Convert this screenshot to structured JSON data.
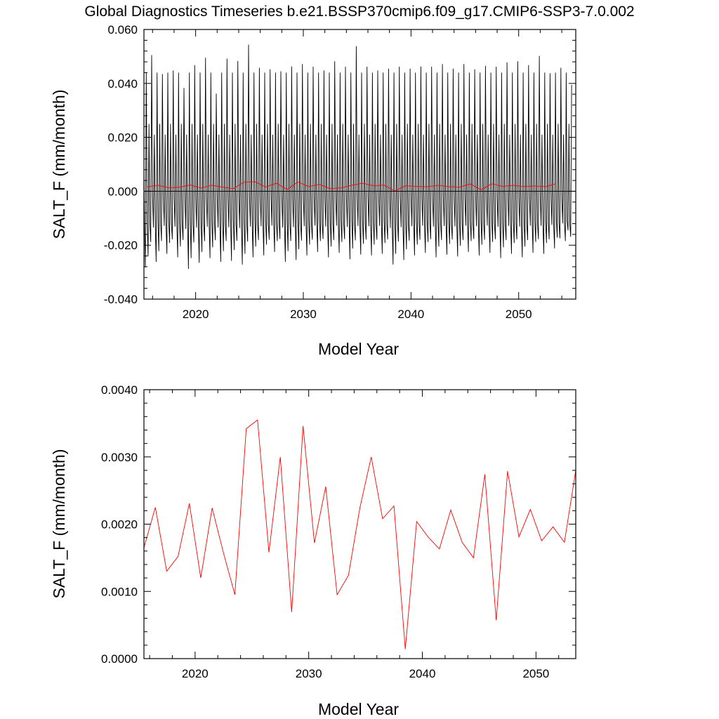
{
  "title": "Global Diagnostics Timeseries b.e21.BSSP370cmip6.f09_g17.CMIP6-SSP3-7.0.002",
  "chart_data": [
    {
      "type": "line",
      "xlabel": "Model Year",
      "ylabel": "SALT_F (mm/month)",
      "xlim": [
        2015.2,
        2055.3
      ],
      "ylim": [
        -0.04,
        0.06
      ],
      "xticks": [
        2020,
        2030,
        2040,
        2050
      ],
      "xtick_labels": [
        "2020",
        "2030",
        "2040",
        "2050"
      ],
      "yticks": [
        -0.04,
        -0.02,
        0.0,
        0.02,
        0.04,
        0.06
      ],
      "ytick_labels": [
        "-0.040",
        "-0.020",
        "0.000",
        "0.020",
        "0.040",
        "0.060"
      ],
      "zero_line": true,
      "grid": false,
      "series": [
        {
          "color": "#000000",
          "x_start": 2015.0,
          "monthly_step": 0.08333,
          "monthly_pattern": [
            -0.002,
            -0.013,
            0.021,
            -0.012,
            -0.021,
            0.044,
            -0.011,
            -0.021,
            0.025,
            -0.012,
            -0.018,
            0.05
          ],
          "peaks": [
            0.0505,
            0.0435,
            0.0448,
            0.0383,
            0.0468,
            0.0495,
            0.0362,
            0.0492,
            0.0483,
            0.0544,
            0.0458,
            0.0452,
            0.0445,
            0.0463,
            0.0472,
            0.0462,
            0.0448,
            0.0482,
            0.0462,
            0.0538,
            0.0462,
            0.0448,
            0.0455,
            0.0462,
            0.0455,
            0.0463,
            0.0462,
            0.0472,
            0.0455,
            0.0472,
            0.0452,
            0.0465,
            0.0462,
            0.0478,
            0.0482,
            0.0468,
            0.0502,
            0.0438,
            0.0458,
            0.0395
          ],
          "troughs": [
            -0.0282,
            -0.0262,
            -0.0232,
            -0.0245,
            -0.0288,
            -0.0265,
            -0.0248,
            -0.0262,
            -0.0258,
            -0.0272,
            -0.0245,
            -0.0238,
            -0.0225,
            -0.0262,
            -0.0255,
            -0.0238,
            -0.0225,
            -0.0245,
            -0.0228,
            -0.0252,
            -0.0235,
            -0.0238,
            -0.0232,
            -0.0272,
            -0.0255,
            -0.0238,
            -0.0228,
            -0.0245,
            -0.0235,
            -0.0242,
            -0.0225,
            -0.0238,
            -0.0228,
            -0.0248,
            -0.0232,
            -0.0245,
            -0.0228,
            -0.0232,
            -0.0212,
            -0.0185
          ]
        },
        {
          "color": "#ff0000",
          "x": [
            2015.5,
            2016.5,
            2017.5,
            2018.5,
            2019.5,
            2020.5,
            2021.5,
            2022.5,
            2023.5,
            2024.5,
            2025.5,
            2026.5,
            2027.5,
            2028.5,
            2029.5,
            2030.5,
            2031.5,
            2032.5,
            2033.5,
            2034.5,
            2035.5,
            2036.5,
            2037.5,
            2038.5,
            2039.5,
            2040.5,
            2041.5,
            2042.5,
            2043.5,
            2044.5,
            2045.5,
            2046.5,
            2047.5,
            2048.5,
            2049.5,
            2050.5,
            2051.5,
            2052.5,
            2053.5
          ],
          "values": [
            0.00165,
            0.00225,
            0.0013,
            0.00152,
            0.00231,
            0.0012,
            0.00224,
            0.00157,
            0.00095,
            0.00342,
            0.00355,
            0.00158,
            0.003,
            0.00069,
            0.00346,
            0.00172,
            0.00256,
            0.00095,
            0.00124,
            0.00224,
            0.003,
            0.00208,
            0.00227,
            0.00014,
            0.00204,
            0.00181,
            0.00163,
            0.00221,
            0.00173,
            0.0015,
            0.00274,
            0.00057,
            0.00279,
            0.00181,
            0.00222,
            0.00175,
            0.00196,
            0.00173,
            0.0028
          ]
        }
      ]
    },
    {
      "type": "line",
      "xlabel": "Model Year",
      "ylabel": "SALT_F (mm/month)",
      "xlim": [
        2015.5,
        2053.5
      ],
      "ylim": [
        0.0,
        0.004
      ],
      "xticks": [
        2020,
        2030,
        2040,
        2050
      ],
      "xtick_labels": [
        "2020",
        "2030",
        "2040",
        "2050"
      ],
      "yticks": [
        0.0,
        0.001,
        0.002,
        0.003,
        0.004
      ],
      "ytick_labels": [
        "0.0000",
        "0.0010",
        "0.0020",
        "0.0030",
        "0.0040"
      ],
      "grid": false,
      "series": [
        {
          "color": "#ff0000",
          "x": [
            2015.5,
            2016.5,
            2017.5,
            2018.5,
            2019.5,
            2020.5,
            2021.5,
            2022.5,
            2023.5,
            2024.5,
            2025.5,
            2026.5,
            2027.5,
            2028.5,
            2029.5,
            2030.5,
            2031.5,
            2032.5,
            2033.5,
            2034.5,
            2035.5,
            2036.5,
            2037.5,
            2038.5,
            2039.5,
            2040.5,
            2041.5,
            2042.5,
            2043.5,
            2044.5,
            2045.5,
            2046.5,
            2047.5,
            2048.5,
            2049.5,
            2050.5,
            2051.5,
            2052.5,
            2053.5
          ],
          "values": [
            0.00165,
            0.00225,
            0.0013,
            0.00152,
            0.00231,
            0.0012,
            0.00224,
            0.00157,
            0.00095,
            0.00342,
            0.00355,
            0.00158,
            0.003,
            0.00069,
            0.00346,
            0.00172,
            0.00256,
            0.00095,
            0.00124,
            0.00224,
            0.003,
            0.00208,
            0.00227,
            0.00014,
            0.00204,
            0.00181,
            0.00163,
            0.00221,
            0.00173,
            0.0015,
            0.00274,
            0.00057,
            0.00279,
            0.00181,
            0.00222,
            0.00175,
            0.00196,
            0.00173,
            0.0028
          ]
        }
      ]
    }
  ]
}
